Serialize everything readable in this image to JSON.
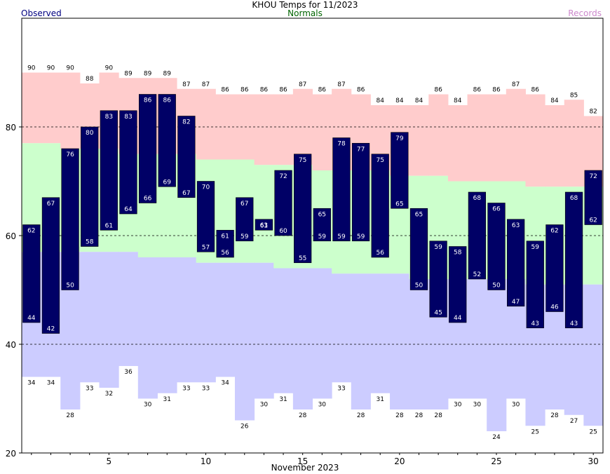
{
  "title": "KHOU Temps for 11/2023",
  "legend": {
    "observed": "Observed",
    "normals": "Normals",
    "records": "Records"
  },
  "colors": {
    "observed": "#000066",
    "normals": "#ccffcc",
    "record_high": "#ffcccc",
    "record_low": "#ccccff",
    "observed_legend": "#000080",
    "normals_legend": "#006400",
    "records_legend": "#cc88cc"
  },
  "chart_data": {
    "type": "bar",
    "xlabel": "November 2023",
    "ylabel": "",
    "ylim": [
      20,
      100
    ],
    "yticks": [
      20,
      40,
      60,
      80
    ],
    "xticks": [
      5,
      10,
      15,
      20,
      25,
      30
    ],
    "grid": "dashed horizontal at 40, 60, 80",
    "days": [
      1,
      2,
      3,
      4,
      5,
      6,
      7,
      8,
      9,
      10,
      11,
      12,
      13,
      14,
      15,
      16,
      17,
      18,
      19,
      20,
      21,
      22,
      23,
      24,
      25,
      26,
      27,
      28,
      29,
      30
    ],
    "observed_high": [
      62,
      67,
      76,
      80,
      83,
      83,
      86,
      86,
      82,
      70,
      61,
      67,
      63,
      72,
      75,
      65,
      78,
      77,
      75,
      79,
      65,
      59,
      58,
      68,
      66,
      63,
      59,
      62,
      68,
      72
    ],
    "observed_low": [
      44,
      42,
      50,
      58,
      61,
      64,
      66,
      69,
      67,
      57,
      56,
      59,
      61,
      60,
      55,
      59,
      59,
      59,
      56,
      65,
      50,
      45,
      44,
      52,
      50,
      47,
      43,
      46,
      43,
      62
    ],
    "record_high": [
      90,
      90,
      90,
      88,
      90,
      89,
      89,
      89,
      87,
      87,
      86,
      86,
      86,
      86,
      87,
      86,
      87,
      86,
      84,
      84,
      84,
      86,
      84,
      86,
      86,
      87,
      86,
      84,
      85,
      82
    ],
    "record_low": [
      34,
      34,
      28,
      33,
      32,
      36,
      30,
      31,
      33,
      33,
      34,
      26,
      30,
      31,
      28,
      30,
      33,
      28,
      31,
      28,
      28,
      28,
      30,
      30,
      24,
      30,
      25,
      28,
      27,
      25
    ],
    "normal_high": [
      77,
      77,
      76,
      76,
      76,
      75,
      75,
      75,
      75,
      74,
      74,
      74,
      73,
      73,
      73,
      72,
      72,
      72,
      72,
      71,
      71,
      71,
      70,
      70,
      70,
      70,
      69,
      69,
      69,
      69
    ],
    "normal_low": [
      57,
      57,
      57,
      57,
      57,
      57,
      56,
      56,
      56,
      55,
      55,
      55,
      55,
      54,
      54,
      54,
      53,
      53,
      53,
      53,
      52,
      52,
      52,
      52,
      52,
      52,
      51,
      51,
      51,
      51
    ]
  }
}
